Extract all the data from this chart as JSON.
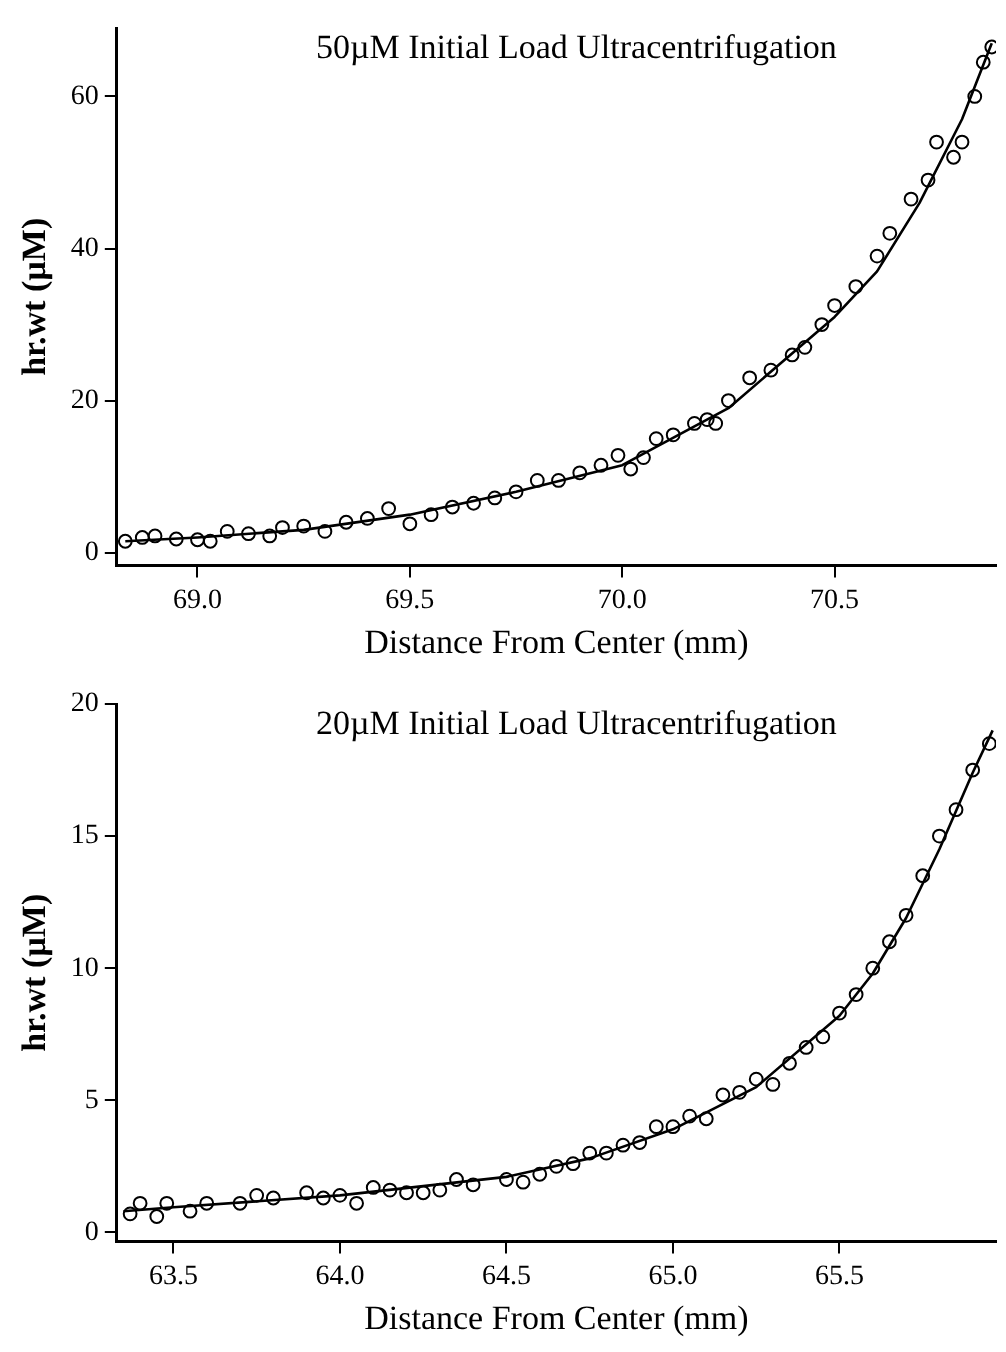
{
  "chart_data": [
    {
      "type": "scatter",
      "title": "50µM Initial Load Ultracentrifugation",
      "xlabel": "Distance From Center (mm)",
      "ylabel": "hr.wt (µM)",
      "xlim": [
        68.81,
        70.88
      ],
      "ylim": [
        -1.7,
        69
      ],
      "xticks": [
        {
          "value": 69,
          "label": "69.0"
        },
        {
          "value": 69.5,
          "label": "69.5"
        },
        {
          "value": 70,
          "label": "70.0"
        },
        {
          "value": 70.5,
          "label": "70.5"
        }
      ],
      "yticks": [
        0,
        20,
        40,
        60
      ],
      "grid": false,
      "legend": false,
      "series": [
        {
          "type": "scatter",
          "marker": "circle",
          "color": "#000000",
          "x": [
            68.83,
            68.87,
            68.9,
            68.95,
            69.0,
            69.03,
            69.07,
            69.12,
            69.17,
            69.2,
            69.25,
            69.3,
            69.35,
            69.4,
            69.45,
            69.5,
            69.55,
            69.6,
            69.65,
            69.7,
            69.75,
            69.8,
            69.85,
            69.9,
            69.95,
            69.99,
            70.02,
            70.05,
            70.08,
            70.12,
            70.17,
            70.2,
            70.22,
            70.25,
            70.3,
            70.35,
            70.4,
            70.43,
            70.47,
            70.5,
            70.55,
            70.6,
            70.63,
            70.68,
            70.72,
            70.74,
            70.78,
            70.8,
            70.83,
            70.85,
            70.87
          ],
          "values": [
            1.5,
            2,
            2.2,
            1.8,
            1.7,
            1.5,
            2.8,
            2.5,
            2.2,
            3.3,
            3.5,
            2.8,
            4,
            4.5,
            5.8,
            3.8,
            5,
            6,
            6.5,
            7.2,
            8,
            9.5,
            9.5,
            10.5,
            11.5,
            12.8,
            11,
            12.5,
            15,
            15.5,
            17,
            17.5,
            17,
            20,
            23,
            24,
            26,
            27,
            30,
            32.5,
            35,
            39,
            42,
            46.5,
            49,
            54,
            52,
            54,
            60,
            64.5,
            66.5
          ]
        },
        {
          "type": "line",
          "marker": "none",
          "line_style": "solid",
          "color": "#000000",
          "x": [
            68.83,
            69.0,
            69.25,
            69.5,
            69.75,
            70.0,
            70.25,
            70.5,
            70.6,
            70.7,
            70.8,
            70.87
          ],
          "values": [
            1.5,
            2,
            3,
            5,
            8,
            11.5,
            19,
            31,
            37,
            46,
            57,
            67
          ]
        }
      ]
    },
    {
      "type": "scatter",
      "title": "20µM Initial Load Ultracentrifugation",
      "xlabel": "Distance From Center (mm)",
      "ylabel": "hr.wt (µM)",
      "xlim": [
        63.33,
        65.97
      ],
      "ylim": [
        -0.35,
        20
      ],
      "xticks": [
        {
          "value": 63.5,
          "label": "63.5"
        },
        {
          "value": 64,
          "label": "64.0"
        },
        {
          "value": 64.5,
          "label": "64.5"
        },
        {
          "value": 65,
          "label": "65.0"
        },
        {
          "value": 65.5,
          "label": "65.5"
        }
      ],
      "yticks": [
        0,
        5,
        10,
        15,
        20
      ],
      "grid": false,
      "legend": false,
      "series": [
        {
          "type": "scatter",
          "marker": "circle",
          "color": "#000000",
          "x": [
            63.37,
            63.4,
            63.45,
            63.48,
            63.55,
            63.6,
            63.7,
            63.75,
            63.8,
            63.9,
            63.95,
            64.0,
            64.05,
            64.1,
            64.15,
            64.2,
            64.25,
            64.3,
            64.35,
            64.4,
            64.5,
            64.55,
            64.6,
            64.65,
            64.7,
            64.75,
            64.8,
            64.85,
            64.9,
            64.95,
            65.0,
            65.05,
            65.1,
            65.15,
            65.2,
            65.25,
            65.3,
            65.35,
            65.4,
            65.45,
            65.5,
            65.55,
            65.6,
            65.65,
            65.7,
            65.75,
            65.8,
            65.85,
            65.9,
            65.95
          ],
          "values": [
            0.7,
            1.1,
            0.6,
            1.1,
            0.8,
            1.1,
            1.1,
            1.4,
            1.3,
            1.5,
            1.3,
            1.4,
            1.1,
            1.7,
            1.6,
            1.5,
            1.5,
            1.6,
            2,
            1.8,
            2,
            1.9,
            2.2,
            2.5,
            2.6,
            3,
            3,
            3.3,
            3.4,
            4,
            4,
            4.4,
            4.3,
            5.2,
            5.3,
            5.8,
            5.6,
            6.4,
            7,
            7.4,
            8.3,
            9,
            10,
            11,
            12,
            13.5,
            15,
            16,
            17.5,
            18.5
          ]
        },
        {
          "type": "line",
          "marker": "none",
          "line_style": "solid",
          "color": "#000000",
          "x": [
            63.35,
            63.5,
            64.0,
            64.5,
            64.75,
            65.0,
            65.25,
            65.5,
            65.6,
            65.7,
            65.8,
            65.9,
            65.96
          ],
          "values": [
            0.8,
            0.95,
            1.4,
            2.1,
            2.8,
            3.9,
            5.5,
            8.2,
            9.8,
            11.9,
            14.5,
            17.4,
            19
          ]
        }
      ]
    }
  ]
}
